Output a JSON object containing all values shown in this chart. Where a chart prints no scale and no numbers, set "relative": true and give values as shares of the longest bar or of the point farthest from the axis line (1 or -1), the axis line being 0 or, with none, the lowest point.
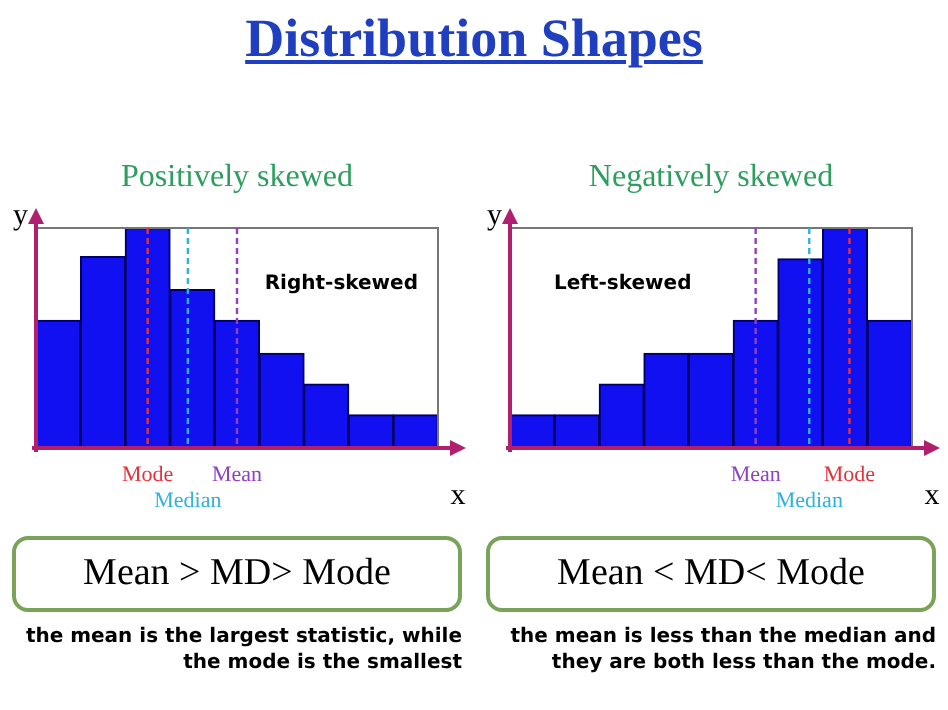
{
  "chart_data": [
    {
      "type": "other",
      "title": "Distribution Shapes"
    },
    {
      "type": "bar",
      "title": "Positively skewed",
      "xlabel": "x",
      "ylabel": "y",
      "relative": true,
      "categories": [
        null,
        null,
        null,
        null,
        null,
        null,
        null,
        null,
        null
      ],
      "values": [
        0.58,
        0.87,
        1,
        0.72,
        0.58,
        0.43,
        0.29,
        0.15,
        0.15
      ],
      "color": "#1010f0",
      "annotations": [
        "Right-skewed",
        "Mean > MD> Mode",
        "the mean is the largest statistic, while the mode is the smallest",
        "Mode",
        "Median",
        "Mean"
      ]
    },
    {
      "type": "bar",
      "title": "Negatively skewed",
      "xlabel": "x",
      "ylabel": "y",
      "relative": true,
      "categories": [
        null,
        null,
        null,
        null,
        null,
        null,
        null,
        null,
        null
      ],
      "values": [
        0.15,
        0.15,
        0.29,
        0.43,
        0.43,
        0.58,
        0.86,
        1,
        0.58
      ],
      "color": "#1010f0",
      "annotations": [
        "Left-skewed",
        "Mean < MD< Mode",
        "the mean is less than the median and they are both less than the mode.",
        "Mean",
        "Median",
        "Mode"
      ]
    }
  ]
}
